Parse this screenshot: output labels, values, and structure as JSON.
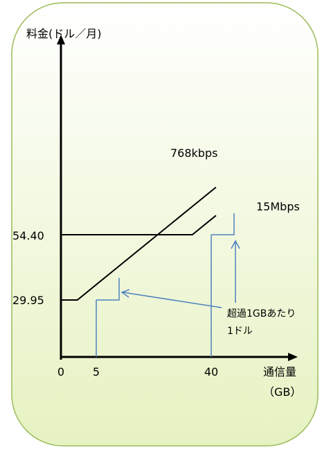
{
  "chart_data": {
    "type": "line",
    "ylabel": "料金(ドル／月)",
    "xlabel": "通信量",
    "xlabel_unit": "（GB）",
    "x_ticks": [
      "0",
      "5",
      "40"
    ],
    "y_ticks": [
      "29.95",
      "54.40"
    ],
    "series": [
      {
        "name": "768kbps",
        "points": [
          [
            0,
            29.95
          ],
          [
            5,
            29.95
          ],
          [
            47.2,
            72.2
          ]
        ]
      },
      {
        "name": "15Mbps",
        "points": [
          [
            0,
            54.4
          ],
          [
            40,
            54.4
          ],
          [
            47.2,
            61.6
          ]
        ]
      }
    ],
    "annotations": [
      {
        "text_lines": [
          "超過1GBあたり",
          "1ドル"
        ]
      }
    ],
    "background_color": "#ebf5cc",
    "background_border_color": "#9bbb59",
    "guide_line_color": "#4f81bd",
    "line_color": "#000000"
  }
}
